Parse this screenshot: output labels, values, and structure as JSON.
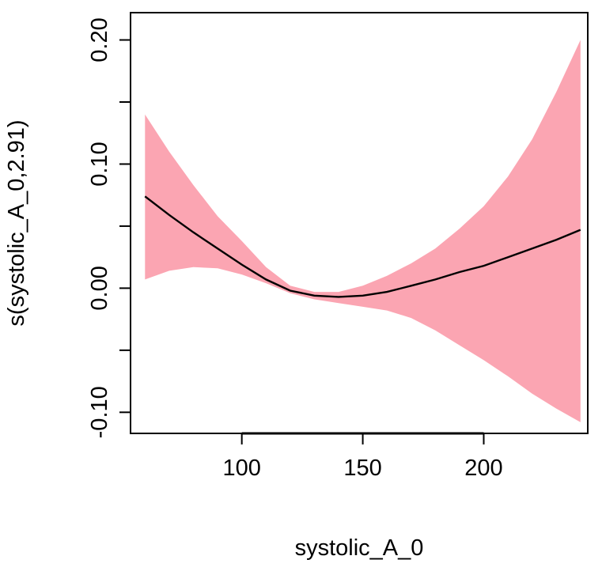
{
  "chart_data": {
    "type": "line",
    "title": "",
    "xlabel": "systolic_A_0",
    "ylabel": "s(systolic_A_0,2.91)",
    "xlim": [
      54,
      243
    ],
    "ylim": [
      -0.117,
      0.222
    ],
    "x_ticks": [
      100,
      150,
      200
    ],
    "x_tick_labels": [
      "100",
      "150",
      "200"
    ],
    "y_ticks": [
      -0.1,
      -0.05,
      0.0,
      0.05,
      0.1,
      0.15,
      0.2
    ],
    "y_tick_labels": [
      "-0.10",
      "",
      "0.00",
      "",
      "0.10",
      "",
      "0.20"
    ],
    "grid": false,
    "legend": "none",
    "colors": {
      "band": "#fba5b2",
      "line": "#000000"
    },
    "series": [
      {
        "kind": "fit",
        "x": [
          60,
          70,
          80,
          90,
          100,
          110,
          120,
          130,
          140,
          150,
          160,
          170,
          180,
          190,
          200,
          210,
          220,
          230,
          240
        ],
        "y": [
          0.074,
          0.059,
          0.045,
          0.032,
          0.019,
          0.007,
          -0.002,
          -0.006,
          -0.007,
          -0.006,
          -0.003,
          0.002,
          0.007,
          0.013,
          0.018,
          0.025,
          0.032,
          0.039,
          0.047
        ]
      },
      {
        "kind": "upper-band",
        "x": [
          60,
          70,
          80,
          90,
          100,
          110,
          120,
          130,
          140,
          150,
          160,
          170,
          180,
          190,
          200,
          210,
          220,
          230,
          240
        ],
        "y": [
          0.14,
          0.11,
          0.083,
          0.058,
          0.038,
          0.017,
          0.002,
          -0.003,
          -0.003,
          0.002,
          0.01,
          0.02,
          0.032,
          0.048,
          0.066,
          0.09,
          0.12,
          0.158,
          0.2
        ]
      },
      {
        "kind": "lower-band",
        "x": [
          60,
          70,
          80,
          90,
          100,
          110,
          120,
          130,
          140,
          150,
          160,
          170,
          180,
          190,
          200,
          210,
          220,
          230,
          240
        ],
        "y": [
          0.007,
          0.014,
          0.017,
          0.016,
          0.011,
          0.004,
          -0.004,
          -0.009,
          -0.012,
          -0.015,
          -0.018,
          -0.024,
          -0.034,
          -0.046,
          -0.058,
          -0.071,
          -0.085,
          -0.097,
          -0.108
        ]
      }
    ]
  }
}
